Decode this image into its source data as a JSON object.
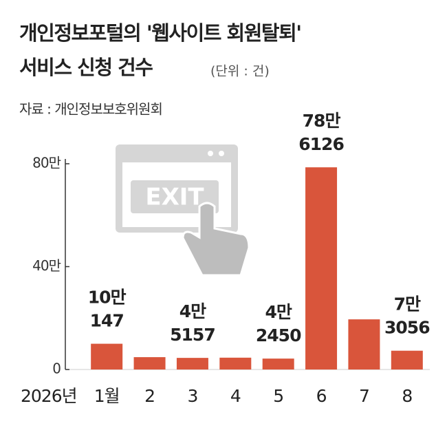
{
  "chart_data": {
    "type": "bar",
    "title": [
      "개인정보포털의 '웹사이트 회원탈퇴'",
      "서비스 신청 건수"
    ],
    "unit_note": "(단위 : 건)",
    "source": "자료 : 개인정보보호위원회",
    "illustration_text": "EXIT",
    "year_label": "2026년",
    "categories": [
      "1월",
      "2",
      "3",
      "4",
      "5",
      "6",
      "7",
      "8"
    ],
    "values": [
      100147,
      48000,
      45157,
      46000,
      42450,
      786126,
      195000,
      73056
    ],
    "value_labels": [
      [
        "10만",
        "147"
      ],
      null,
      [
        "4만",
        "5157"
      ],
      null,
      [
        "4만",
        "2450"
      ],
      [
        "78만",
        "6126"
      ],
      null,
      [
        "7만",
        "3056"
      ]
    ],
    "color": "#d9553b",
    "ylim": [
      0,
      820000
    ],
    "yticks": [
      0,
      {
        "value": 400000,
        "label": "40만"
      },
      {
        "value": 800000,
        "label": "80만"
      }
    ],
    "grid": false
  }
}
